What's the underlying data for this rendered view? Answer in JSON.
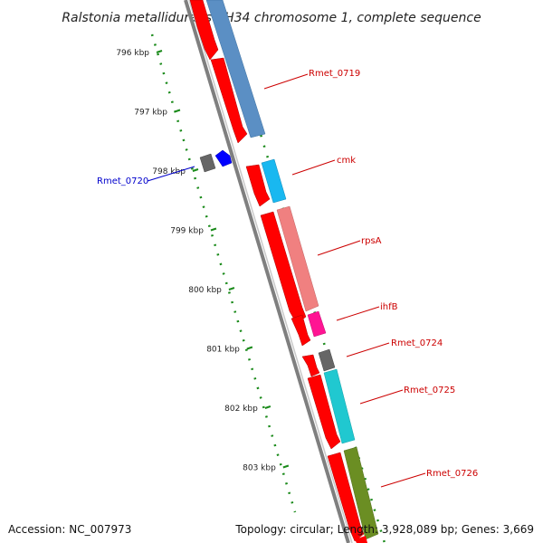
{
  "title": "Ralstonia metallidurans CH34 chromosome 1, complete sequence",
  "footer": {
    "accession": "Accession: NC_007973",
    "topology": "Topology: circular; Length: 3,928,089 bp; Genes: 3,669"
  },
  "ticks": [
    {
      "kbp": 796,
      "label": "796 kbp"
    },
    {
      "kbp": 797,
      "label": "797 kbp"
    },
    {
      "kbp": 798,
      "label": "798 kbp"
    },
    {
      "kbp": 799,
      "label": "799 kbp"
    },
    {
      "kbp": 800,
      "label": "800 kbp"
    },
    {
      "kbp": 801,
      "label": "801 kbp"
    },
    {
      "kbp": 802,
      "label": "802 kbp"
    },
    {
      "kbp": 803,
      "label": "803 kbp"
    }
  ],
  "gene_labels": [
    {
      "name": "Rmet_0719",
      "color": "#cc0000"
    },
    {
      "name": "cmk",
      "color": "#cc0000"
    },
    {
      "name": "Rmet_0720",
      "color": "#0000cc"
    },
    {
      "name": "rpsA",
      "color": "#cc0000"
    },
    {
      "name": "ihfB",
      "color": "#cc0000"
    },
    {
      "name": "Rmet_0724",
      "color": "#cc0000"
    },
    {
      "name": "Rmet_0725",
      "color": "#cc0000"
    },
    {
      "name": "Rmet_0726",
      "color": "#cc0000"
    }
  ],
  "colors": {
    "backbone": "#808080",
    "tick_green": "#1a8a1a",
    "forward_cds": "#ff0000",
    "reverse_cds": "#0000ff",
    "rmet_0719_block": "#5b8fc4",
    "cmk_block": "#19b8f0",
    "rpsa_block": "#f08080",
    "ihfb_block": "#ff1493",
    "rmet_0724_block": "#666666",
    "rmet_0725_block": "#20c8d0",
    "rmet_0726_block": "#6b8e23"
  }
}
